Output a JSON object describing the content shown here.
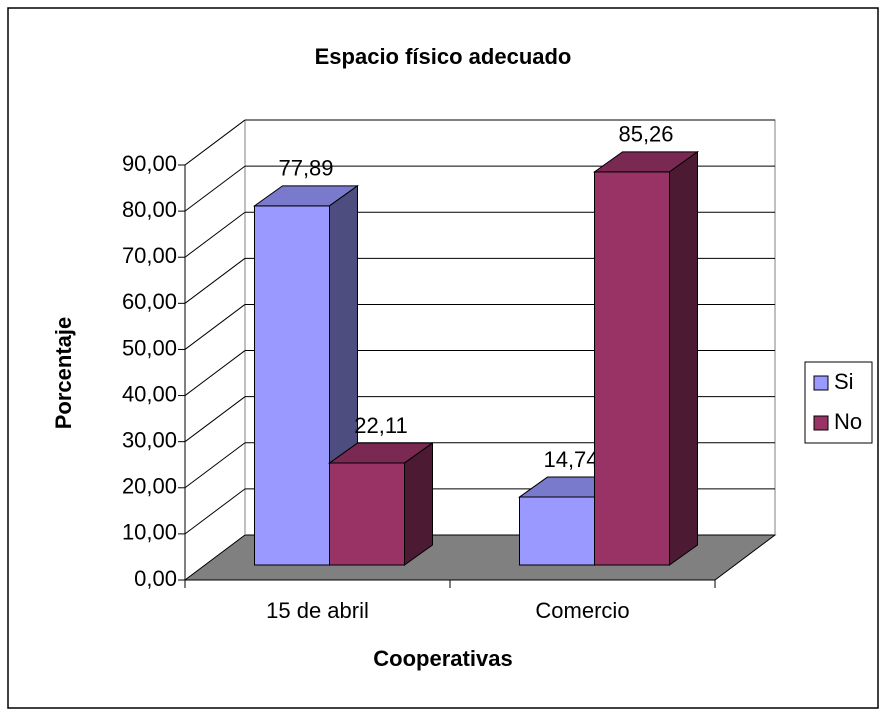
{
  "chart_data": {
    "type": "bar3d",
    "title": "Espacio físico adecuado",
    "x_label": "Cooperativas",
    "y_label": "Porcentaje",
    "categories": [
      "15 de abril",
      "Comercio"
    ],
    "series": [
      {
        "name": "Si",
        "color": "#9999ff",
        "values": [
          77.89,
          14.74
        ],
        "value_labels": [
          "77,89",
          "14,74"
        ]
      },
      {
        "name": "No",
        "color": "#993366",
        "values": [
          22.11,
          85.26
        ],
        "value_labels": [
          "22,11",
          "85,26"
        ]
      }
    ],
    "ylim": [
      0,
      90
    ],
    "yticks": [
      {
        "value": 0,
        "label": "0,00"
      },
      {
        "value": 10,
        "label": "10,00"
      },
      {
        "value": 20,
        "label": "20,00"
      },
      {
        "value": 30,
        "label": "30,00"
      },
      {
        "value": 40,
        "label": "40,00"
      },
      {
        "value": 50,
        "label": "50,00"
      },
      {
        "value": 60,
        "label": "60,00"
      },
      {
        "value": 70,
        "label": "70,00"
      },
      {
        "value": 80,
        "label": "80,00"
      },
      {
        "value": 90,
        "label": "90,00"
      }
    ],
    "grid": true,
    "legend": "right",
    "floor_color": "#808080"
  }
}
